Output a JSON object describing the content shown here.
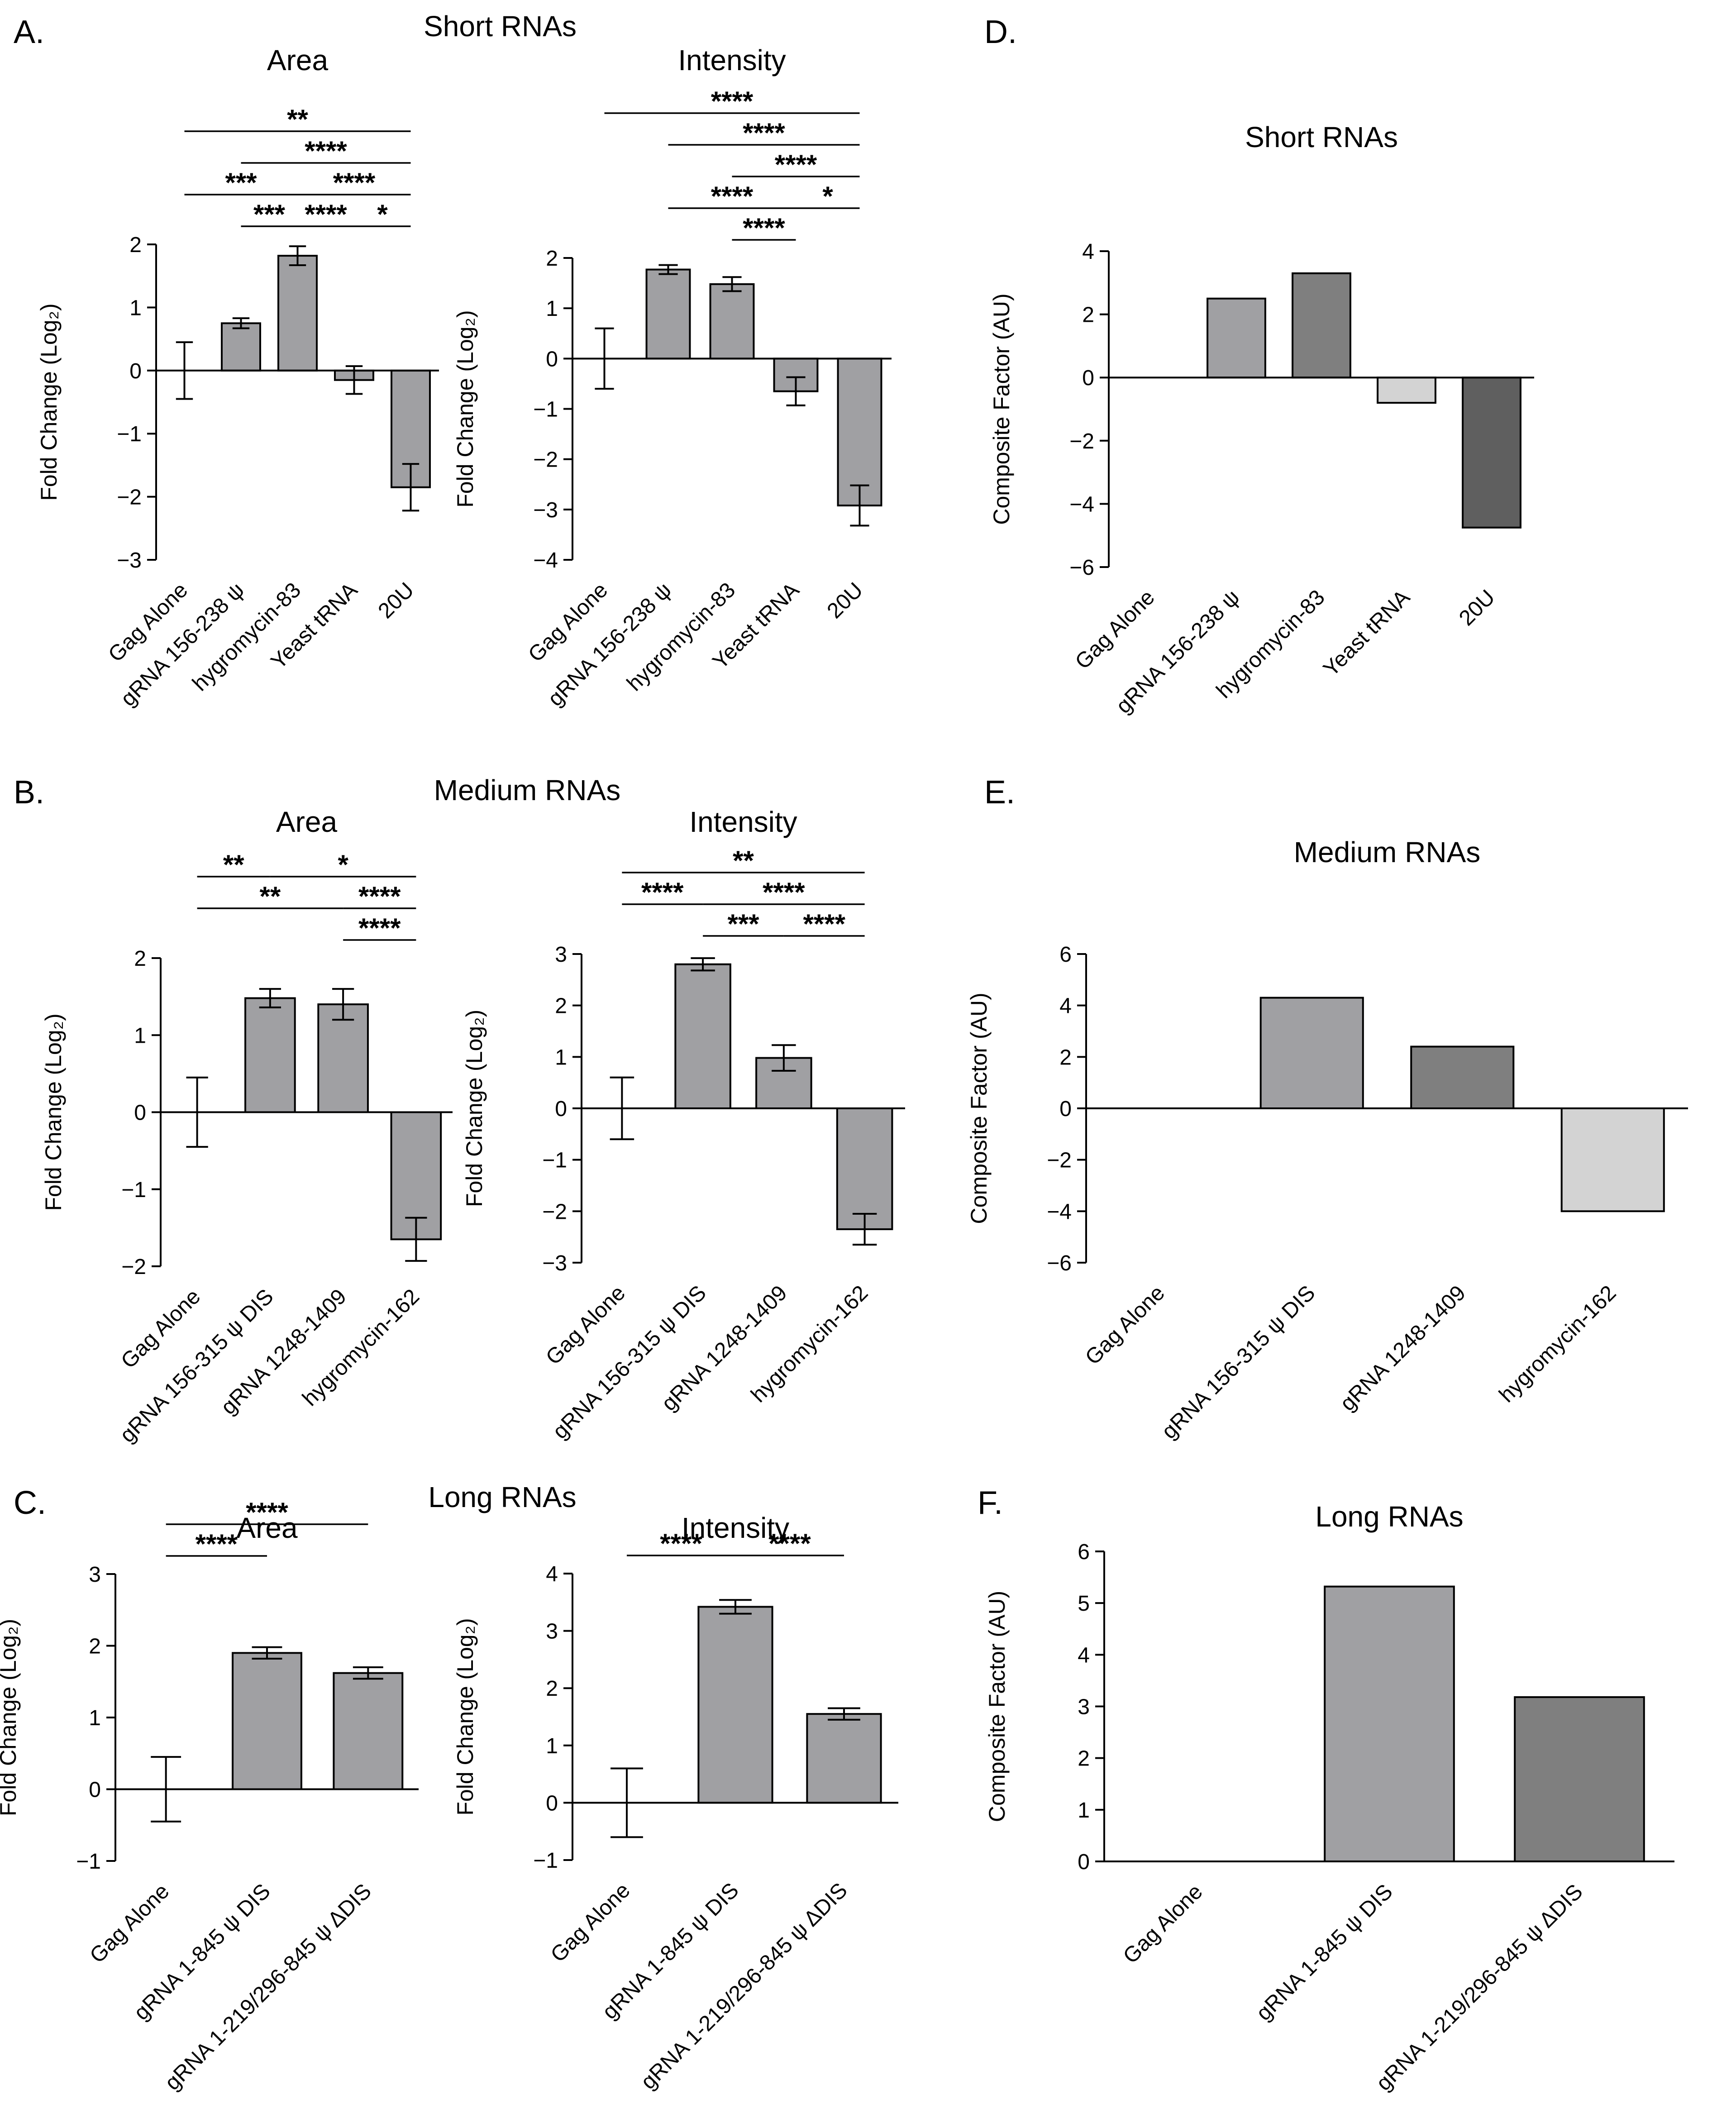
{
  "colors": {
    "bar": "#a0a0a3",
    "stroke": "#000000"
  },
  "panel_labels": {
    "A": "A.",
    "B": "B.",
    "C": "C.",
    "D": "D.",
    "E": "E.",
    "F": "F."
  },
  "group_titles": {
    "A": "Short RNAs",
    "B": "Medium RNAs",
    "C": "Long RNAs"
  },
  "chart_data": [
    {
      "id": "A-area",
      "type": "bar",
      "title": "Area",
      "ylabel": "Fold Change (Log₂)",
      "categories": [
        "Gag Alone",
        "gRNA 156-238 ψ",
        "hygromycin-83",
        "Yeast tRNA",
        "20U"
      ],
      "values": [
        0,
        0.75,
        1.82,
        -0.15,
        -1.85
      ],
      "errors": [
        0.45,
        0.08,
        0.15,
        0.22,
        0.37
      ],
      "ylim": [
        -3,
        2
      ],
      "yticks": [
        -3,
        -2,
        -1,
        0,
        1,
        2
      ],
      "significance": [
        {
          "from": 0,
          "to": 4,
          "label": "**"
        },
        {
          "from": 1,
          "to": 4,
          "label": "****"
        },
        {
          "from": 0,
          "to": 2,
          "label": "***"
        },
        {
          "from": 2,
          "to": 4,
          "label": "****"
        },
        {
          "from": 1,
          "to": 2,
          "label": "***"
        },
        {
          "from": 2,
          "to": 3,
          "label": "****"
        },
        {
          "from": 3,
          "to": 4,
          "label": "*"
        }
      ]
    },
    {
      "id": "A-intensity",
      "type": "bar",
      "title": "Intensity",
      "ylabel": "Fold Change (Log₂)",
      "categories": [
        "Gag Alone",
        "gRNA 156-238 ψ",
        "hygromycin-83",
        "Yeast tRNA",
        "20U"
      ],
      "values": [
        0,
        1.77,
        1.48,
        -0.65,
        -2.92
      ],
      "errors": [
        0.6,
        0.09,
        0.14,
        0.28,
        0.4
      ],
      "ylim": [
        -4,
        2
      ],
      "yticks": [
        -4,
        -3,
        -2,
        -1,
        0,
        1,
        2
      ],
      "significance": [
        {
          "from": 0,
          "to": 4,
          "label": "****"
        },
        {
          "from": 1,
          "to": 4,
          "label": "****"
        },
        {
          "from": 2,
          "to": 4,
          "label": "****"
        },
        {
          "from": 1,
          "to": 3,
          "label": "****"
        },
        {
          "from": 2,
          "to": 3,
          "label": "****"
        },
        {
          "from": 3,
          "to": 4,
          "label": "*"
        }
      ]
    },
    {
      "id": "D",
      "type": "bar",
      "title": "Short RNAs",
      "ylabel": "Composite Factor (AU)",
      "categories": [
        "Gag Alone",
        "gRNA 156-238 ψ",
        "hygromycin-83",
        "Yeast tRNA",
        "20U"
      ],
      "values": [
        0,
        2.5,
        3.3,
        -0.8,
        -4.75
      ],
      "colors": [
        "#a0a0a3",
        "#a0a0a3",
        "#7f7f7f",
        "#d3d3d3",
        "#5f5f5f"
      ],
      "ylim": [
        -6,
        4
      ],
      "yticks": [
        -6,
        -4,
        -2,
        0,
        2,
        4
      ]
    },
    {
      "id": "B-area",
      "type": "bar",
      "title": "Area",
      "ylabel": "Fold Change (Log₂)",
      "categories": [
        "Gag Alone",
        "gRNA 156-315 ψ DIS",
        "gRNA 1248-1409",
        "hygromycin-162"
      ],
      "values": [
        0,
        1.48,
        1.4,
        -1.65
      ],
      "errors": [
        0.45,
        0.12,
        0.2,
        0.28
      ],
      "ylim": [
        -2,
        2
      ],
      "yticks": [
        -2,
        -1,
        0,
        1,
        2
      ],
      "significance": [
        {
          "from": 1,
          "to": 3,
          "label": "*"
        },
        {
          "from": 2,
          "to": 3,
          "label": "****"
        },
        {
          "from": 0,
          "to": 2,
          "label": "**"
        },
        {
          "from": 2,
          "to": 3,
          "label": "****"
        },
        {
          "from": 0,
          "to": 1,
          "label": "**"
        }
      ]
    },
    {
      "id": "B-intensity",
      "type": "bar",
      "title": "Intensity",
      "ylabel": "Fold Change (Log₂)",
      "categories": [
        "Gag Alone",
        "gRNA 156-315 ψ DIS",
        "gRNA 1248-1409",
        "hygromycin-162"
      ],
      "values": [
        0,
        2.8,
        0.98,
        -2.35
      ],
      "errors": [
        0.6,
        0.12,
        0.25,
        0.3
      ],
      "ylim": [
        -3,
        3
      ],
      "yticks": [
        -3,
        -2,
        -1,
        0,
        1,
        2,
        3
      ],
      "significance": [
        {
          "from": 0,
          "to": 3,
          "label": "**"
        },
        {
          "from": 1,
          "to": 3,
          "label": "****"
        },
        {
          "from": 0,
          "to": 1,
          "label": "****"
        },
        {
          "from": 1,
          "to": 2,
          "label": "***"
        },
        {
          "from": 2,
          "to": 3,
          "label": "****"
        }
      ]
    },
    {
      "id": "E",
      "type": "bar",
      "title": "Medium RNAs",
      "ylabel": "Composite Factor (AU)",
      "categories": [
        "Gag Alone",
        "gRNA 156-315 ψ DIS",
        "gRNA 1248-1409",
        "hygromycin-162"
      ],
      "values": [
        0,
        4.3,
        2.4,
        -4.0
      ],
      "colors": [
        "#a0a0a3",
        "#a0a0a3",
        "#7f7f7f",
        "#d3d3d3"
      ],
      "ylim": [
        -6,
        6
      ],
      "yticks": [
        -6,
        -4,
        -2,
        0,
        2,
        4,
        6
      ]
    },
    {
      "id": "C-area",
      "type": "bar",
      "title": "Area",
      "ylabel": "Fold Change (Log₂)",
      "categories": [
        "Gag Alone",
        "gRNA 1-845 ψ DIS",
        "gRNA 1-219/296-845 ψ ΔDIS"
      ],
      "values": [
        0,
        1.9,
        1.62
      ],
      "errors": [
        0.45,
        0.08,
        0.08
      ],
      "ylim": [
        -1,
        3
      ],
      "yticks": [
        -1,
        0,
        1,
        2,
        3
      ],
      "significance": [
        {
          "from": 0,
          "to": 2,
          "label": "****"
        },
        {
          "from": 0,
          "to": 1,
          "label": "****"
        }
      ]
    },
    {
      "id": "C-intensity",
      "type": "bar",
      "title": "Intensity",
      "ylabel": "Fold Change (Log₂)",
      "categories": [
        "Gag Alone",
        "gRNA 1-845 ψ DIS",
        "gRNA 1-219/296-845 ψ ΔDIS"
      ],
      "values": [
        0,
        3.42,
        1.55
      ],
      "errors": [
        0.6,
        0.12,
        0.1
      ],
      "ylim": [
        -1,
        4
      ],
      "yticks": [
        -1,
        0,
        1,
        2,
        3,
        4
      ],
      "significance": [
        {
          "from": 0,
          "to": 1,
          "label": "****"
        },
        {
          "from": 1,
          "to": 2,
          "label": "****"
        }
      ]
    },
    {
      "id": "F",
      "type": "bar",
      "title": "Long RNAs",
      "ylabel": "Composite Factor (AU)",
      "categories": [
        "Gag Alone",
        "gRNA 1-845 ψ DIS",
        "gRNA 1-219/296-845 ψ ΔDIS"
      ],
      "values": [
        0,
        5.32,
        3.18
      ],
      "colors": [
        "#a0a0a3",
        "#a0a0a3",
        "#7f7f7f"
      ],
      "ylim": [
        0,
        6
      ],
      "yticks": [
        0,
        1,
        2,
        3,
        4,
        5,
        6
      ]
    }
  ]
}
